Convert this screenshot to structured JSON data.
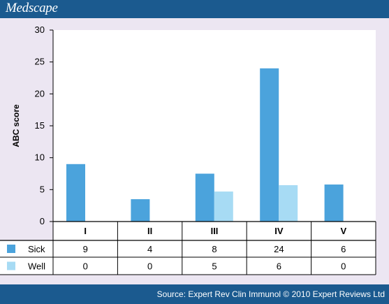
{
  "brand": "Medscape",
  "source": "Source: Expert Rev Clin Immunol © 2010 Expert Reviews Ltd",
  "colors": {
    "header_bg": "#1b5a8f",
    "panel_bg": "#ece6f2",
    "sick": "#4ba3dc",
    "well": "#a7dbf4"
  },
  "chart_data": {
    "type": "bar",
    "title": "",
    "xlabel": "",
    "ylabel": "ABC score",
    "ylim": [
      0,
      30
    ],
    "yticks": [
      0,
      5,
      10,
      15,
      20,
      25,
      30
    ],
    "grid": false,
    "categories": [
      "I",
      "II",
      "III",
      "IV",
      "V"
    ],
    "series": [
      {
        "name": "Sick",
        "color": "#4ba3dc",
        "values": [
          9,
          3.5,
          7.5,
          24,
          5.8
        ],
        "table_values": [
          "9",
          "4",
          "8",
          "24",
          "6"
        ]
      },
      {
        "name": "Well",
        "color": "#a7dbf4",
        "values": [
          null,
          null,
          4.7,
          5.7,
          null
        ],
        "table_values": [
          "0",
          "0",
          "5",
          "6",
          "0"
        ]
      }
    ]
  }
}
